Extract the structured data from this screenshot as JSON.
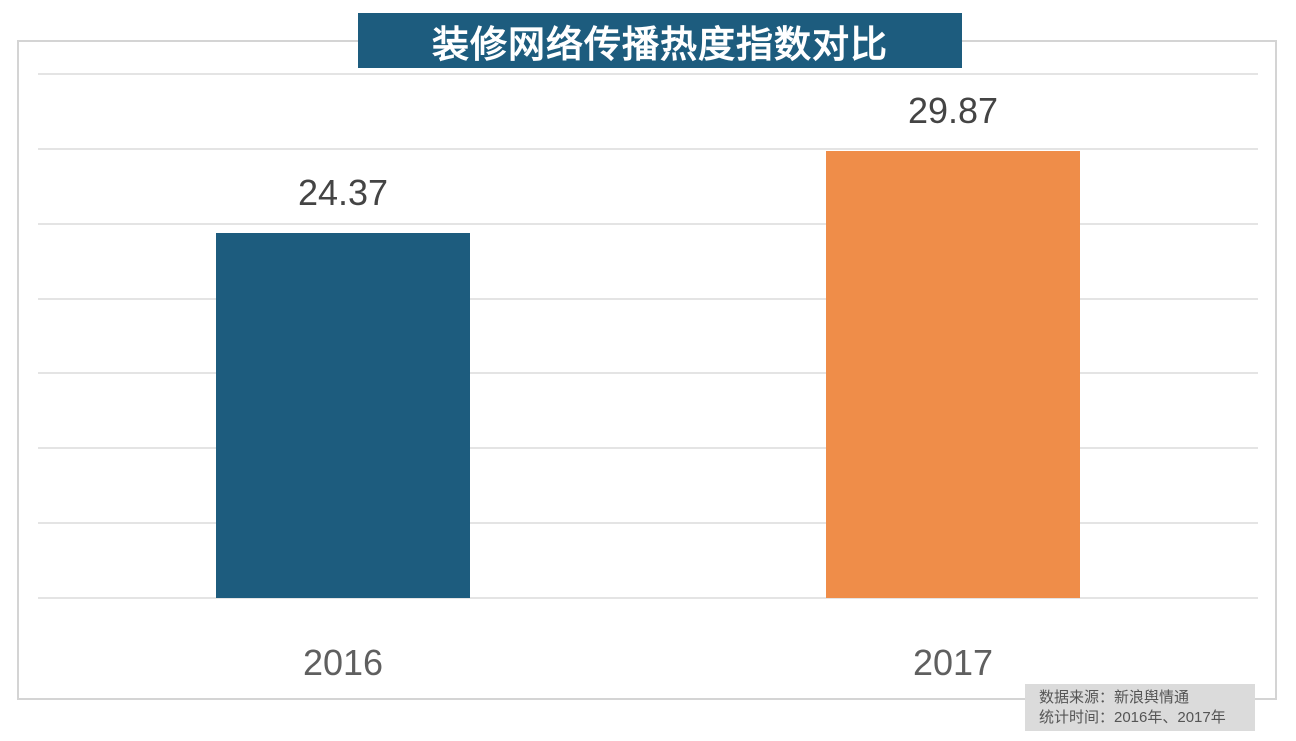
{
  "title": "装修网络传播热度指数对比",
  "source_note": {
    "line1": "数据来源：新浪舆情通",
    "line2": "统计时间：2016年、2017年"
  },
  "colors": {
    "title_bg": "#1d5c7e",
    "title_text": "#ffffff",
    "grid": "#e4e4e4",
    "plot_border": "#d4d4d4",
    "value_label_text": "#444444",
    "axis_label_text": "#5f5f5f",
    "source_box_bg": "#dbdbdb",
    "source_text": "#555555"
  },
  "chart_data": {
    "type": "bar",
    "title": "装修网络传播热度指数对比",
    "categories": [
      "2016",
      "2017"
    ],
    "values": [
      24.37,
      29.87
    ],
    "value_labels": [
      "24.37",
      "29.87"
    ],
    "bar_colors": [
      "#1d5c7e",
      "#ef8d49"
    ],
    "xlabel": "",
    "ylabel": "",
    "ylim": [
      0,
      35
    ],
    "grid_step": 5,
    "grid": true,
    "legend": false,
    "y_tick_labels_visible": false,
    "annotations": [
      "数据来源：新浪舆情通",
      "统计时间：2016年、2017年"
    ]
  }
}
